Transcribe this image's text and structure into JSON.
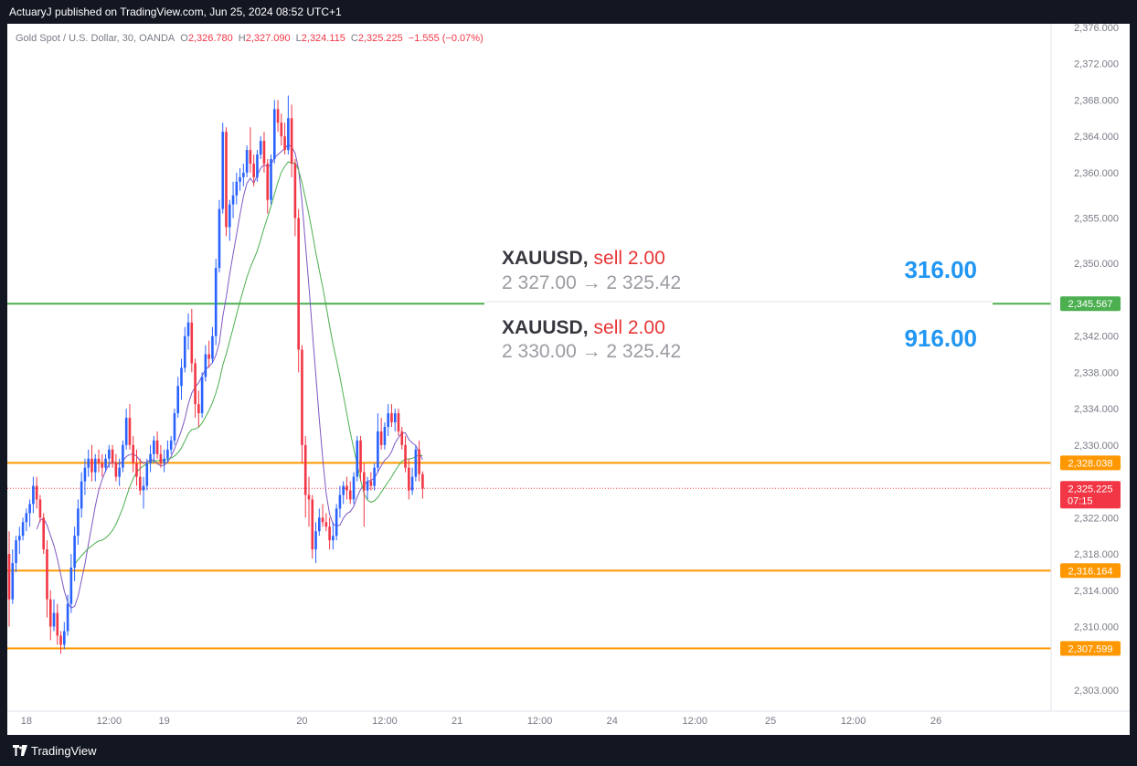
{
  "header": {
    "published_line": "ActuaryJ published on TradingView.com, Jun 25, 2024 08:52 UTC+1"
  },
  "legend": {
    "symbol": "Gold Spot / U.S. Dollar, 30, OANDA",
    "o_label": "O",
    "o_value": "2,326.780",
    "h_label": "H",
    "h_value": "2,327.090",
    "l_label": "L",
    "l_value": "2,324.115",
    "c_label": "C",
    "c_value": "2,325.225",
    "change": "−1.555 (−0.07%)"
  },
  "footer": {
    "brand": "TradingView"
  },
  "colors": {
    "up": "#2962ff",
    "down": "#f23645",
    "orange": "#ff9800",
    "green": "#4caf50",
    "purple": "#7e57c2",
    "ma_green": "#4caf50"
  },
  "chart_data": {
    "type": "candlestick",
    "symbol": "XAUUSD",
    "interval": "30",
    "ylim": [
      2303,
      2376
    ],
    "y_ticks": [
      "2,376.000",
      "2,372.000",
      "2,368.000",
      "2,364.000",
      "2,360.000",
      "2,355.000",
      "2,350.000",
      "2,342.000",
      "2,338.000",
      "2,334.000",
      "2,330.000",
      "2,322.000",
      "2,318.000",
      "2,314.000",
      "2,310.000",
      "2,303.000"
    ],
    "y_tick_values": [
      2376,
      2372,
      2368,
      2364,
      2360,
      2355,
      2350,
      2342,
      2338,
      2334,
      2330,
      2322,
      2318,
      2314,
      2310,
      2303
    ],
    "x_ticks": [
      {
        "label": "18",
        "bar": 5
      },
      {
        "label": "12:00",
        "bar": 29
      },
      {
        "label": "19",
        "bar": 45
      },
      {
        "label": "20",
        "bar": 85
      },
      {
        "label": "12:00",
        "bar": 109
      },
      {
        "label": "21",
        "bar": 130
      },
      {
        "label": "12:00",
        "bar": 154
      },
      {
        "label": "24",
        "bar": 175
      },
      {
        "label": "12:00",
        "bar": 199
      },
      {
        "label": "25",
        "bar": 221
      },
      {
        "label": "12:00",
        "bar": 245
      },
      {
        "label": "26",
        "bar": 269
      }
    ],
    "horizontal_levels": [
      {
        "value": 2345.567,
        "label": "2,345.567",
        "color": "#4caf50"
      },
      {
        "value": 2328.038,
        "label": "2,328.038",
        "color": "#ff9800"
      },
      {
        "value": 2316.164,
        "label": "2,316.164",
        "color": "#ff9800"
      },
      {
        "value": 2307.599,
        "label": "2,307.599",
        "color": "#ff9800"
      }
    ],
    "last_price": {
      "value": 2325.225,
      "label": "2,325.225",
      "countdown": "07:15"
    },
    "ohlc": [
      [
        2318.0,
        2320.5,
        2310.0,
        2313.0
      ],
      [
        2313.0,
        2318.5,
        2312.5,
        2317.0
      ],
      [
        2317.0,
        2320.0,
        2316.0,
        2319.5
      ],
      [
        2319.5,
        2321.0,
        2318.0,
        2320.0
      ],
      [
        2320.0,
        2322.0,
        2319.5,
        2321.5
      ],
      [
        2321.5,
        2323.0,
        2320.5,
        2322.5
      ],
      [
        2322.5,
        2324.0,
        2321.0,
        2323.5
      ],
      [
        2323.5,
        2326.5,
        2322.5,
        2325.5
      ],
      [
        2325.5,
        2326.5,
        2323.0,
        2324.0
      ],
      [
        2324.0,
        2324.5,
        2321.5,
        2322.0
      ],
      [
        2322.0,
        2322.5,
        2318.0,
        2318.5
      ],
      [
        2318.5,
        2319.5,
        2311.0,
        2313.0
      ],
      [
        2313.0,
        2314.0,
        2308.5,
        2310.0
      ],
      [
        2310.0,
        2313.0,
        2309.5,
        2311.5
      ],
      [
        2311.5,
        2312.5,
        2308.0,
        2309.0
      ],
      [
        2309.0,
        2309.5,
        2307.0,
        2308.0
      ],
      [
        2308.0,
        2310.5,
        2307.5,
        2309.5
      ],
      [
        2309.5,
        2313.5,
        2309.0,
        2312.5
      ],
      [
        2312.5,
        2318.0,
        2311.5,
        2316.5
      ],
      [
        2316.5,
        2321.0,
        2315.0,
        2320.0
      ],
      [
        2320.0,
        2324.0,
        2319.0,
        2323.0
      ],
      [
        2323.0,
        2327.0,
        2322.0,
        2326.0
      ],
      [
        2326.0,
        2328.5,
        2324.5,
        2327.5
      ],
      [
        2327.5,
        2329.5,
        2326.5,
        2328.5
      ],
      [
        2328.5,
        2330.0,
        2326.0,
        2327.0
      ],
      [
        2327.0,
        2329.0,
        2326.0,
        2328.5
      ],
      [
        2328.5,
        2329.5,
        2327.0,
        2328.0
      ],
      [
        2328.0,
        2329.0,
        2326.5,
        2327.5
      ],
      [
        2327.5,
        2329.0,
        2327.0,
        2328.5
      ],
      [
        2328.5,
        2330.0,
        2327.5,
        2329.5
      ],
      [
        2329.5,
        2330.0,
        2327.5,
        2328.0
      ],
      [
        2328.0,
        2329.0,
        2326.0,
        2326.5
      ],
      [
        2326.5,
        2328.5,
        2325.5,
        2327.5
      ],
      [
        2327.5,
        2330.5,
        2327.0,
        2330.0
      ],
      [
        2330.0,
        2334.0,
        2329.5,
        2333.0
      ],
      [
        2333.0,
        2334.5,
        2329.5,
        2330.0
      ],
      [
        2330.0,
        2331.0,
        2327.0,
        2328.0
      ],
      [
        2328.0,
        2329.5,
        2325.5,
        2326.5
      ],
      [
        2326.5,
        2328.5,
        2324.5,
        2325.0
      ],
      [
        2325.0,
        2326.5,
        2323.0,
        2325.5
      ],
      [
        2325.5,
        2328.5,
        2325.0,
        2328.0
      ],
      [
        2328.0,
        2330.0,
        2327.0,
        2329.0
      ],
      [
        2329.0,
        2331.0,
        2328.0,
        2330.5
      ],
      [
        2330.5,
        2331.5,
        2328.5,
        2329.0
      ],
      [
        2329.0,
        2330.0,
        2327.5,
        2328.0
      ],
      [
        2328.0,
        2329.5,
        2327.0,
        2328.5
      ],
      [
        2328.5,
        2330.5,
        2328.0,
        2329.5
      ],
      [
        2329.5,
        2331.0,
        2329.0,
        2330.5
      ],
      [
        2330.5,
        2334.0,
        2330.0,
        2333.5
      ],
      [
        2333.5,
        2337.5,
        2333.0,
        2336.5
      ],
      [
        2336.5,
        2339.5,
        2335.0,
        2338.5
      ],
      [
        2338.5,
        2343.0,
        2338.0,
        2342.0
      ],
      [
        2342.0,
        2344.5,
        2340.5,
        2343.5
      ],
      [
        2343.5,
        2345.0,
        2338.0,
        2339.0
      ],
      [
        2339.0,
        2339.5,
        2333.0,
        2334.5
      ],
      [
        2334.5,
        2336.0,
        2332.0,
        2333.5
      ],
      [
        2333.5,
        2338.0,
        2333.0,
        2337.5
      ],
      [
        2337.5,
        2341.0,
        2337.0,
        2340.0
      ],
      [
        2340.0,
        2341.5,
        2338.5,
        2339.5
      ],
      [
        2339.5,
        2343.0,
        2339.0,
        2342.0
      ],
      [
        2342.0,
        2350.5,
        2341.0,
        2349.5
      ],
      [
        2349.5,
        2357.0,
        2349.0,
        2356.0
      ],
      [
        2356.0,
        2365.5,
        2355.5,
        2364.5
      ],
      [
        2364.5,
        2365.0,
        2353.0,
        2354.0
      ],
      [
        2354.0,
        2357.0,
        2352.5,
        2356.5
      ],
      [
        2356.5,
        2359.0,
        2355.0,
        2357.5
      ],
      [
        2357.5,
        2360.0,
        2356.5,
        2359.0
      ],
      [
        2359.0,
        2360.5,
        2358.0,
        2359.5
      ],
      [
        2359.5,
        2361.0,
        2358.5,
        2360.0
      ],
      [
        2360.0,
        2363.0,
        2359.5,
        2362.5
      ],
      [
        2362.5,
        2365.0,
        2360.0,
        2361.0
      ],
      [
        2361.0,
        2362.0,
        2358.5,
        2359.5
      ],
      [
        2359.5,
        2362.5,
        2359.0,
        2362.0
      ],
      [
        2362.0,
        2364.0,
        2361.5,
        2363.5
      ],
      [
        2363.5,
        2364.5,
        2360.0,
        2361.0
      ],
      [
        2361.0,
        2361.5,
        2355.5,
        2357.0
      ],
      [
        2357.0,
        2362.0,
        2356.5,
        2361.5
      ],
      [
        2361.5,
        2368.0,
        2361.0,
        2367.0
      ],
      [
        2367.0,
        2368.0,
        2364.5,
        2365.5
      ],
      [
        2365.5,
        2366.5,
        2363.0,
        2364.0
      ],
      [
        2364.0,
        2365.5,
        2362.0,
        2362.5
      ],
      [
        2362.5,
        2368.5,
        2362.0,
        2366.0
      ],
      [
        2366.0,
        2367.5,
        2359.5,
        2361.0
      ],
      [
        2361.0,
        2361.5,
        2353.0,
        2355.0
      ],
      [
        2355.0,
        2356.0,
        2338.0,
        2340.5
      ],
      [
        2340.5,
        2341.0,
        2328.0,
        2330.0
      ],
      [
        2330.0,
        2331.0,
        2322.0,
        2324.5
      ],
      [
        2324.5,
        2326.5,
        2321.0,
        2324.0
      ],
      [
        2324.0,
        2324.5,
        2317.5,
        2318.5
      ],
      [
        2318.5,
        2321.5,
        2317.0,
        2320.5
      ],
      [
        2320.5,
        2323.0,
        2320.0,
        2322.0
      ],
      [
        2322.0,
        2323.5,
        2321.0,
        2321.5
      ],
      [
        2321.5,
        2322.5,
        2320.5,
        2321.0
      ],
      [
        2321.0,
        2322.0,
        2318.5,
        2319.5
      ],
      [
        2319.5,
        2321.5,
        2318.5,
        2320.0
      ],
      [
        2320.0,
        2323.5,
        2319.5,
        2323.0
      ],
      [
        2323.0,
        2325.5,
        2322.0,
        2324.5
      ],
      [
        2324.5,
        2326.0,
        2323.5,
        2325.5
      ],
      [
        2325.5,
        2326.5,
        2324.0,
        2325.0
      ],
      [
        2325.0,
        2326.0,
        2323.5,
        2324.0
      ],
      [
        2324.0,
        2327.0,
        2323.5,
        2326.5
      ],
      [
        2326.5,
        2331.0,
        2326.0,
        2330.5
      ],
      [
        2330.5,
        2331.0,
        2326.0,
        2327.0
      ],
      [
        2327.0,
        2328.0,
        2321.0,
        2325.0
      ],
      [
        2325.0,
        2326.5,
        2324.0,
        2326.0
      ],
      [
        2326.0,
        2327.0,
        2325.0,
        2325.5
      ],
      [
        2325.5,
        2328.0,
        2325.0,
        2327.5
      ],
      [
        2327.5,
        2333.5,
        2327.0,
        2331.5
      ],
      [
        2331.5,
        2333.0,
        2329.5,
        2330.0
      ],
      [
        2330.0,
        2332.5,
        2329.5,
        2332.0
      ],
      [
        2332.0,
        2334.5,
        2331.0,
        2333.5
      ],
      [
        2333.5,
        2334.5,
        2332.0,
        2332.5
      ],
      [
        2332.5,
        2334.0,
        2331.5,
        2333.5
      ],
      [
        2333.5,
        2334.0,
        2331.0,
        2331.5
      ],
      [
        2331.5,
        2332.0,
        2329.5,
        2330.0
      ],
      [
        2330.0,
        2331.0,
        2327.0,
        2327.5
      ],
      [
        2327.5,
        2328.5,
        2324.0,
        2325.0
      ],
      [
        2325.0,
        2327.5,
        2324.5,
        2326.5
      ],
      [
        2326.5,
        2330.0,
        2326.0,
        2329.5
      ],
      [
        2329.5,
        2330.5,
        2326.0,
        2326.8
      ],
      [
        2326.8,
        2327.1,
        2324.1,
        2325.2
      ]
    ]
  }
}
